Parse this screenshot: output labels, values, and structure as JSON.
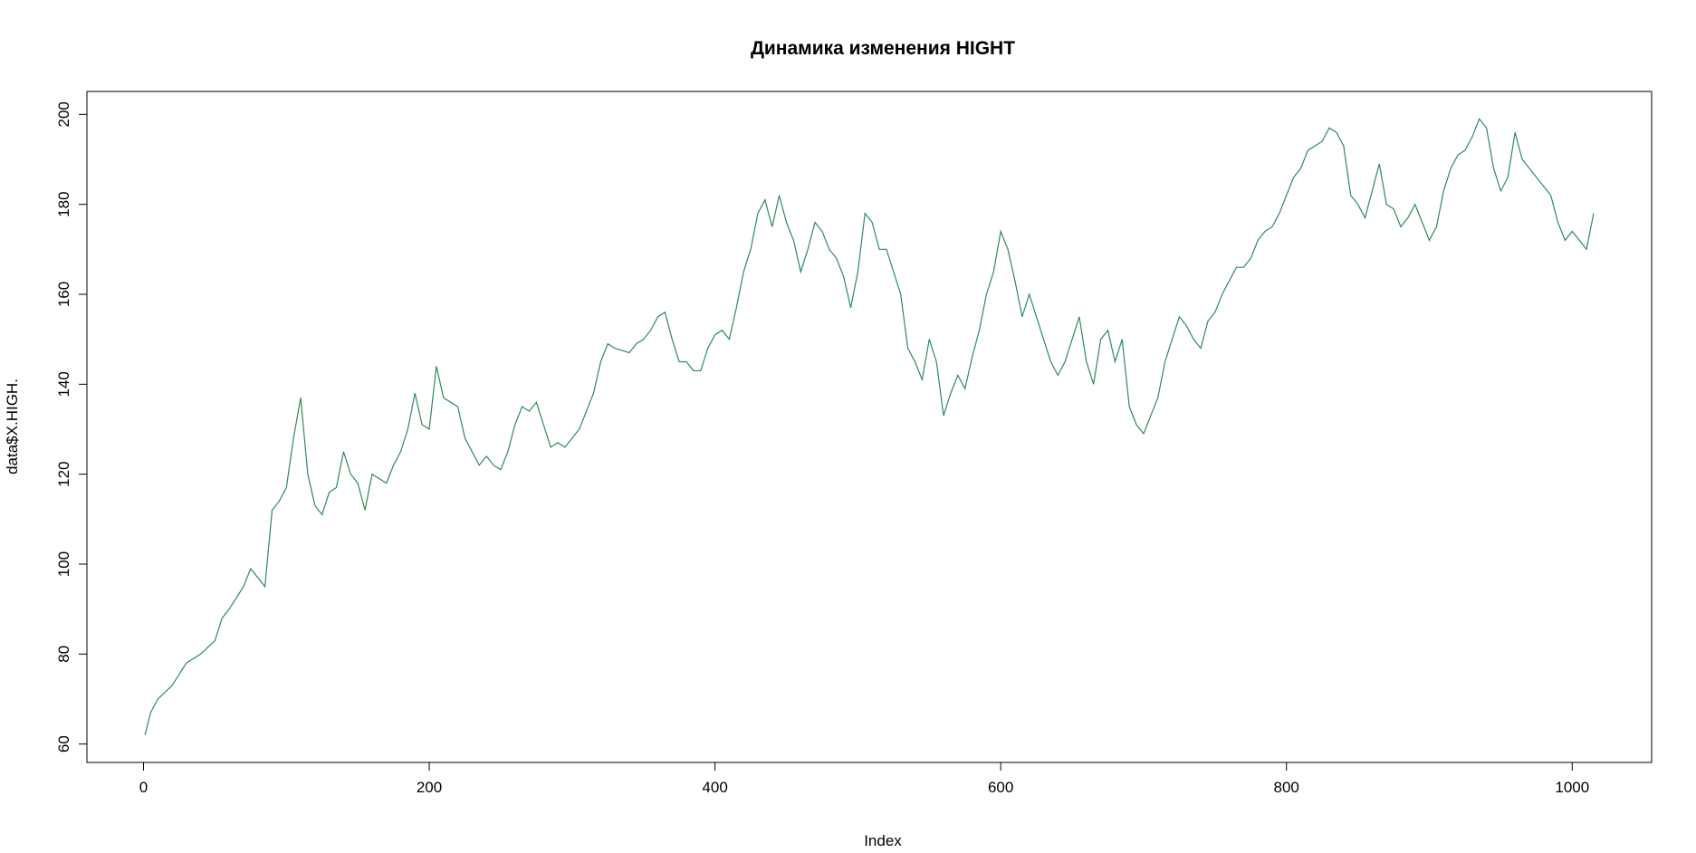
{
  "chart_data": {
    "type": "line",
    "title": "Динамика изменения HIGHT",
    "xlabel": "Index",
    "ylabel": "data$X.HIGH.",
    "color": "#2e8b57",
    "x": [
      1,
      5,
      10,
      20,
      30,
      40,
      50,
      55,
      60,
      70,
      75,
      80,
      85,
      90,
      95,
      100,
      105,
      110,
      115,
      120,
      125,
      130,
      135,
      140,
      145,
      150,
      155,
      160,
      165,
      170,
      175,
      180,
      185,
      190,
      195,
      200,
      205,
      210,
      215,
      220,
      225,
      230,
      235,
      240,
      245,
      250,
      255,
      260,
      265,
      270,
      275,
      280,
      285,
      290,
      295,
      300,
      305,
      310,
      315,
      320,
      325,
      330,
      340,
      345,
      350,
      355,
      360,
      365,
      370,
      375,
      380,
      385,
      390,
      395,
      400,
      405,
      410,
      415,
      420,
      425,
      430,
      435,
      440,
      445,
      450,
      455,
      460,
      465,
      470,
      475,
      480,
      485,
      490,
      495,
      500,
      505,
      510,
      515,
      520,
      525,
      530,
      535,
      540,
      545,
      550,
      555,
      560,
      565,
      570,
      575,
      580,
      585,
      590,
      595,
      600,
      605,
      610,
      615,
      620,
      625,
      630,
      635,
      640,
      645,
      650,
      655,
      660,
      665,
      670,
      675,
      680,
      685,
      690,
      695,
      700,
      705,
      710,
      715,
      720,
      725,
      730,
      735,
      740,
      745,
      750,
      755,
      760,
      765,
      770,
      775,
      780,
      785,
      790,
      795,
      800,
      805,
      810,
      815,
      820,
      825,
      830,
      835,
      840,
      845,
      850,
      855,
      860,
      865,
      870,
      875,
      880,
      885,
      890,
      895,
      900,
      905,
      910,
      915,
      920,
      925,
      930,
      935,
      940,
      945,
      950,
      955,
      960,
      965,
      970,
      975,
      980,
      985,
      990,
      995,
      1000,
      1005,
      1010,
      1015
    ],
    "values": [
      62,
      67,
      70,
      73,
      78,
      80,
      83,
      88,
      90,
      95,
      99,
      97,
      95,
      112,
      114,
      117,
      128,
      137,
      120,
      113,
      111,
      116,
      117,
      125,
      120,
      118,
      112,
      120,
      119,
      118,
      122,
      125,
      130,
      138,
      131,
      130,
      144,
      137,
      136,
      135,
      128,
      125,
      122,
      124,
      122,
      121,
      125,
      131,
      135,
      134,
      136,
      131,
      126,
      127,
      126,
      128,
      130,
      134,
      138,
      145,
      149,
      148,
      147,
      149,
      150,
      152,
      155,
      156,
      150,
      145,
      145,
      143,
      143,
      148,
      151,
      152,
      150,
      157,
      165,
      170,
      178,
      181,
      175,
      182,
      176,
      172,
      165,
      170,
      176,
      174,
      170,
      168,
      164,
      157,
      165,
      178,
      176,
      170,
      170,
      165,
      160,
      148,
      145,
      141,
      150,
      145,
      133,
      138,
      142,
      139,
      146,
      152,
      160,
      165,
      174,
      170,
      163,
      155,
      160,
      155,
      150,
      145,
      142,
      145,
      150,
      155,
      145,
      140,
      150,
      152,
      145,
      150,
      135,
      131,
      129,
      133,
      137,
      145,
      150,
      155,
      153,
      150,
      148,
      154,
      156,
      160,
      163,
      166,
      166,
      168,
      172,
      174,
      175,
      178,
      182,
      186,
      188,
      192,
      193,
      194,
      197,
      196,
      193,
      182,
      180,
      177,
      183,
      189,
      180,
      179,
      175,
      177,
      180,
      176,
      172,
      175,
      183,
      188,
      191,
      192,
      195,
      199,
      197,
      188,
      183,
      186,
      196,
      190,
      188,
      186,
      184,
      182,
      176,
      172,
      174,
      172,
      170,
      178
    ],
    "xlim": [
      -39.6,
      1055.6
    ],
    "ylim": [
      55.9,
      205.1
    ],
    "xticks": [
      0,
      200,
      400,
      600,
      800,
      1000
    ],
    "yticks": [
      60,
      80,
      100,
      120,
      140,
      160,
      180,
      200
    ]
  }
}
